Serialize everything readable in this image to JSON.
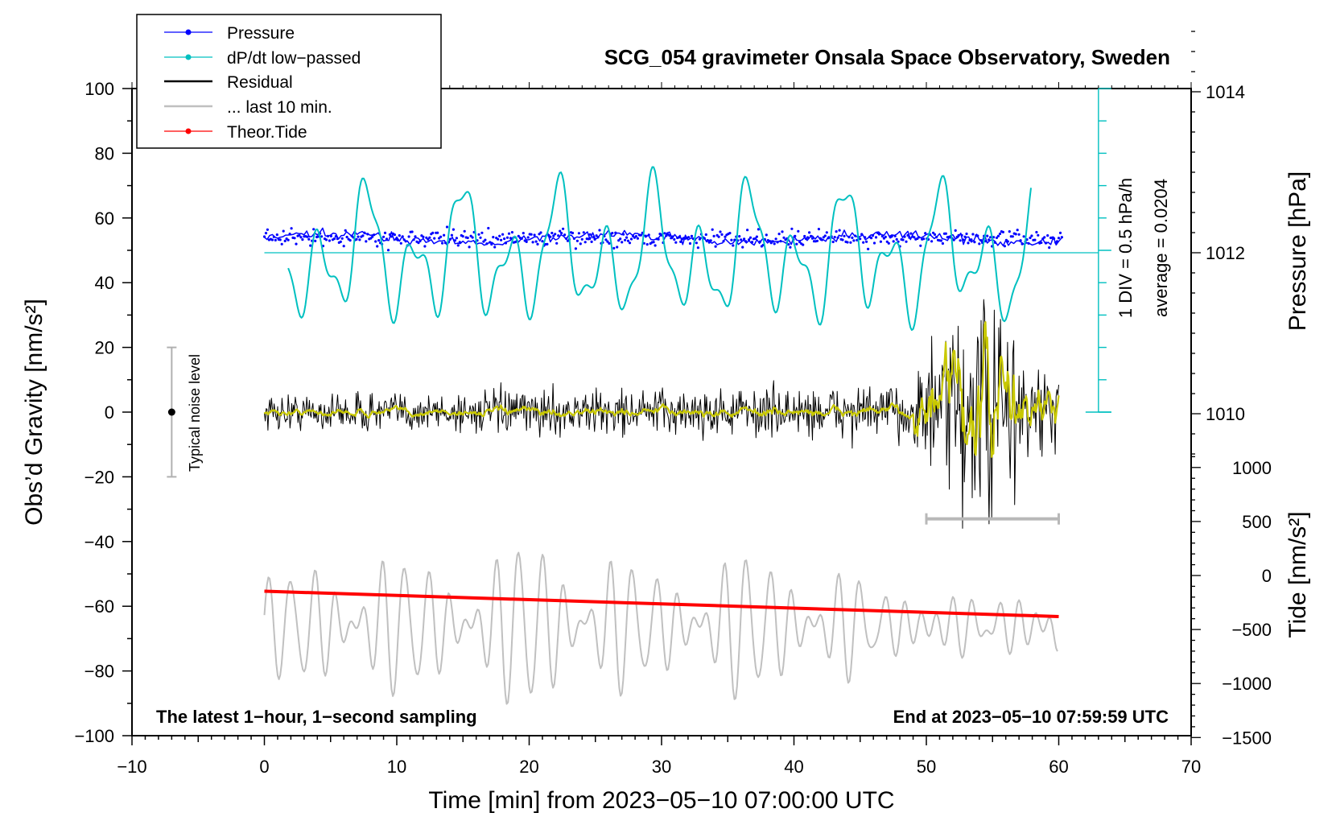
{
  "chart_data": {
    "type": "line",
    "title": "SCG_054 gravimeter Onsala Space Observatory, Sweden",
    "xlabel": "Time [min] from 2023−05−10 07:00:00 UTC",
    "ylabel_left": "Obs’d Gravity [nm/s²]",
    "ylabel_pressure": "Pressure [hPa]",
    "ylabel_tide": "Tide [nm/s²]",
    "xlim": [
      -10,
      70
    ],
    "ylim": [
      -100,
      100
    ],
    "x_ticks": [
      "−10",
      "0",
      "10",
      "20",
      "30",
      "40",
      "50",
      "60",
      "70"
    ],
    "y_ticks": [
      "100",
      "80",
      "60",
      "40",
      "20",
      "0",
      "−20",
      "−40",
      "−60",
      "−80",
      "−100"
    ],
    "pressure_ticks": [
      "1014",
      "1012",
      "1010"
    ],
    "tide_ticks": [
      "1000",
      "500",
      "0",
      "−500",
      "−1000",
      "−1500"
    ],
    "pressure_average_hpa": 1012.0,
    "tide_start": -145,
    "tide_end": -380,
    "legend": [
      {
        "label": "Pressure",
        "color": "#0000ff",
        "marker": true
      },
      {
        "label": "dP/dt low−passed",
        "color": "#00c0c0",
        "marker": true
      },
      {
        "label": "Residual",
        "color": "#000000",
        "marker": false
      },
      {
        "label": "... last 10 min.",
        "color": "#c0c0c0",
        "marker": false
      },
      {
        "label": "Theor.Tide",
        "color": "#ff0000",
        "marker": true
      }
    ],
    "dpdt_minima_min": [
      4.2,
      10.8,
      22.0,
      34.4,
      40.5,
      44.6,
      47.8,
      53.6,
      56.8
    ],
    "annotations": {
      "scale_label": "1 DIV = 0.5 hPa/h",
      "average_label": "average = 0.0204",
      "noise_label": "Typical noise level",
      "noise_range": [
        -20,
        20
      ],
      "bottom_left": "The latest 1−hour, 1−second sampling",
      "bottom_right": "End at 2023−05−10 07:59:59 UTC",
      "last10_range_min": [
        50,
        60
      ]
    }
  }
}
